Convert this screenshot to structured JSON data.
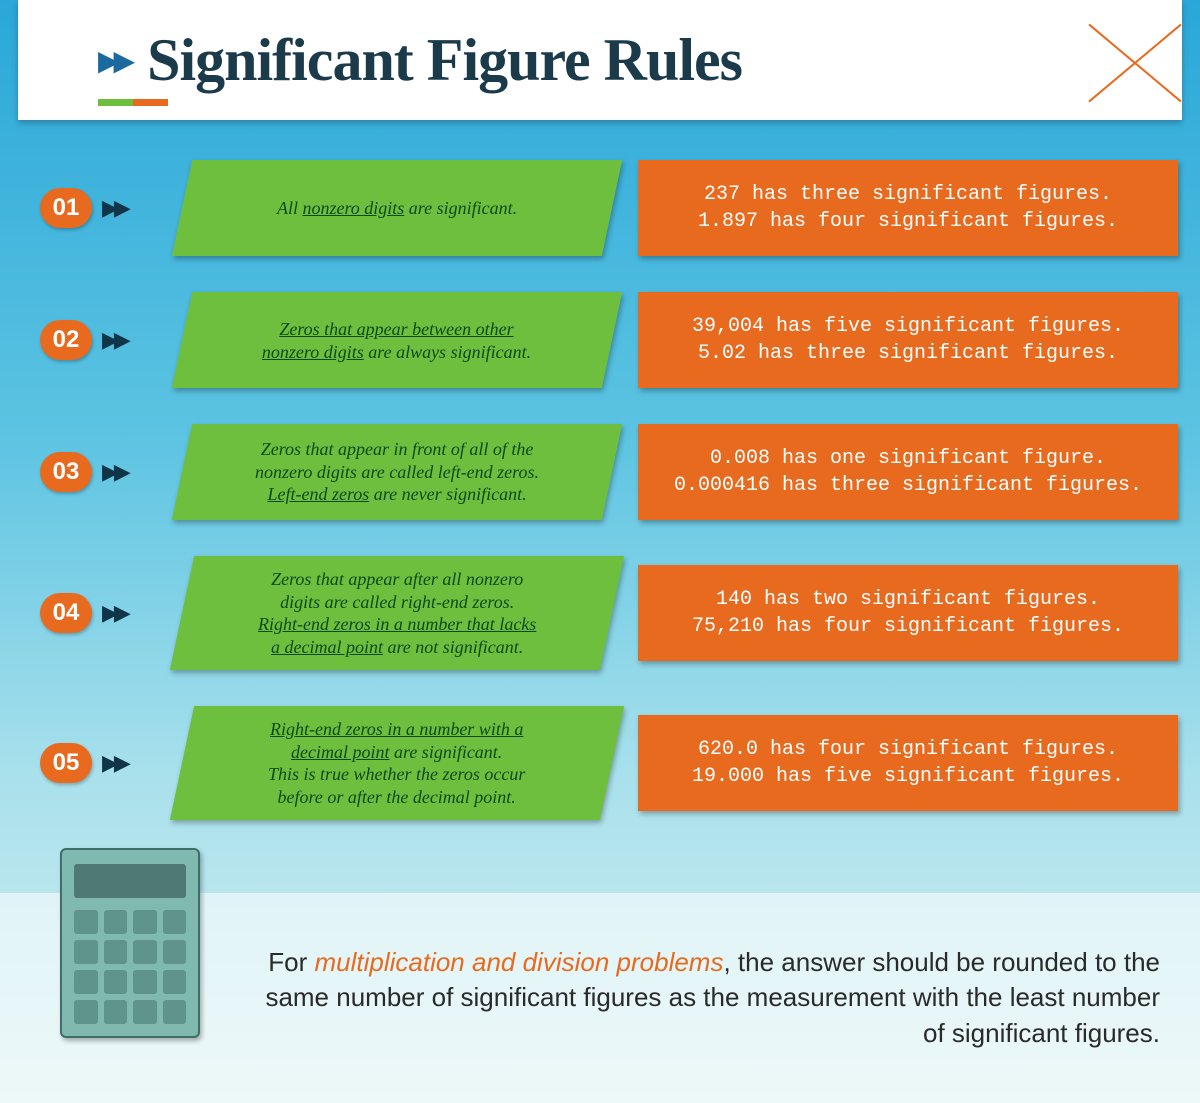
{
  "title": "Significant Figure Rules",
  "colors": {
    "rule_bg": "#6fbf3f",
    "example_bg": "#e86a1f",
    "badge_bg": "#e86a1f",
    "rule_text": "#0d4a1a",
    "example_text": "#ffffff",
    "title_text": "#1b3a4a",
    "bg_top": "#2aa7d8",
    "bg_bottom": "#d8f0f0"
  },
  "rules": [
    {
      "num": "01",
      "rule_html": "All <u>nonzero digits</u> are significant.",
      "example_html": "237 has three significant figures.<br>1.897 has four significant figures."
    },
    {
      "num": "02",
      "rule_html": "<u>Zeros that appear between other<br>nonzero digits</u> are always significant.",
      "example_html": "39,004 has five significant figures.<br>5.02 has three significant figures."
    },
    {
      "num": "03",
      "rule_html": "Zeros that appear in front of all of the<br>nonzero digits are called left-end zeros.<br><u>Left-end zeros</u> are never significant.",
      "example_html": "0.008 has one significant figure.<br>0.000416 has three significant figures."
    },
    {
      "num": "04",
      "rule_html": "Zeros that appear after all nonzero<br>digits are called right-end zeros.<br><u>Right-end zeros in a number that lacks<br>a decimal point</u> are not significant.",
      "example_html": "140 has two significant figures.<br>75,210 has four significant figures."
    },
    {
      "num": "05",
      "rule_html": "<u>Right-end zeros in a number with a<br>decimal point</u> are significant.<br>This is true whether the zeros occur<br>before or after the decimal point.",
      "example_html": "620.0 has four significant figures.<br>19.000 has five significant figures."
    }
  ],
  "footer": {
    "prefix": "For ",
    "highlight": "multiplication and division problems",
    "rest": ", the answer should be rounded to the same number of significant figures as the measurement with the least number of significant figures."
  }
}
